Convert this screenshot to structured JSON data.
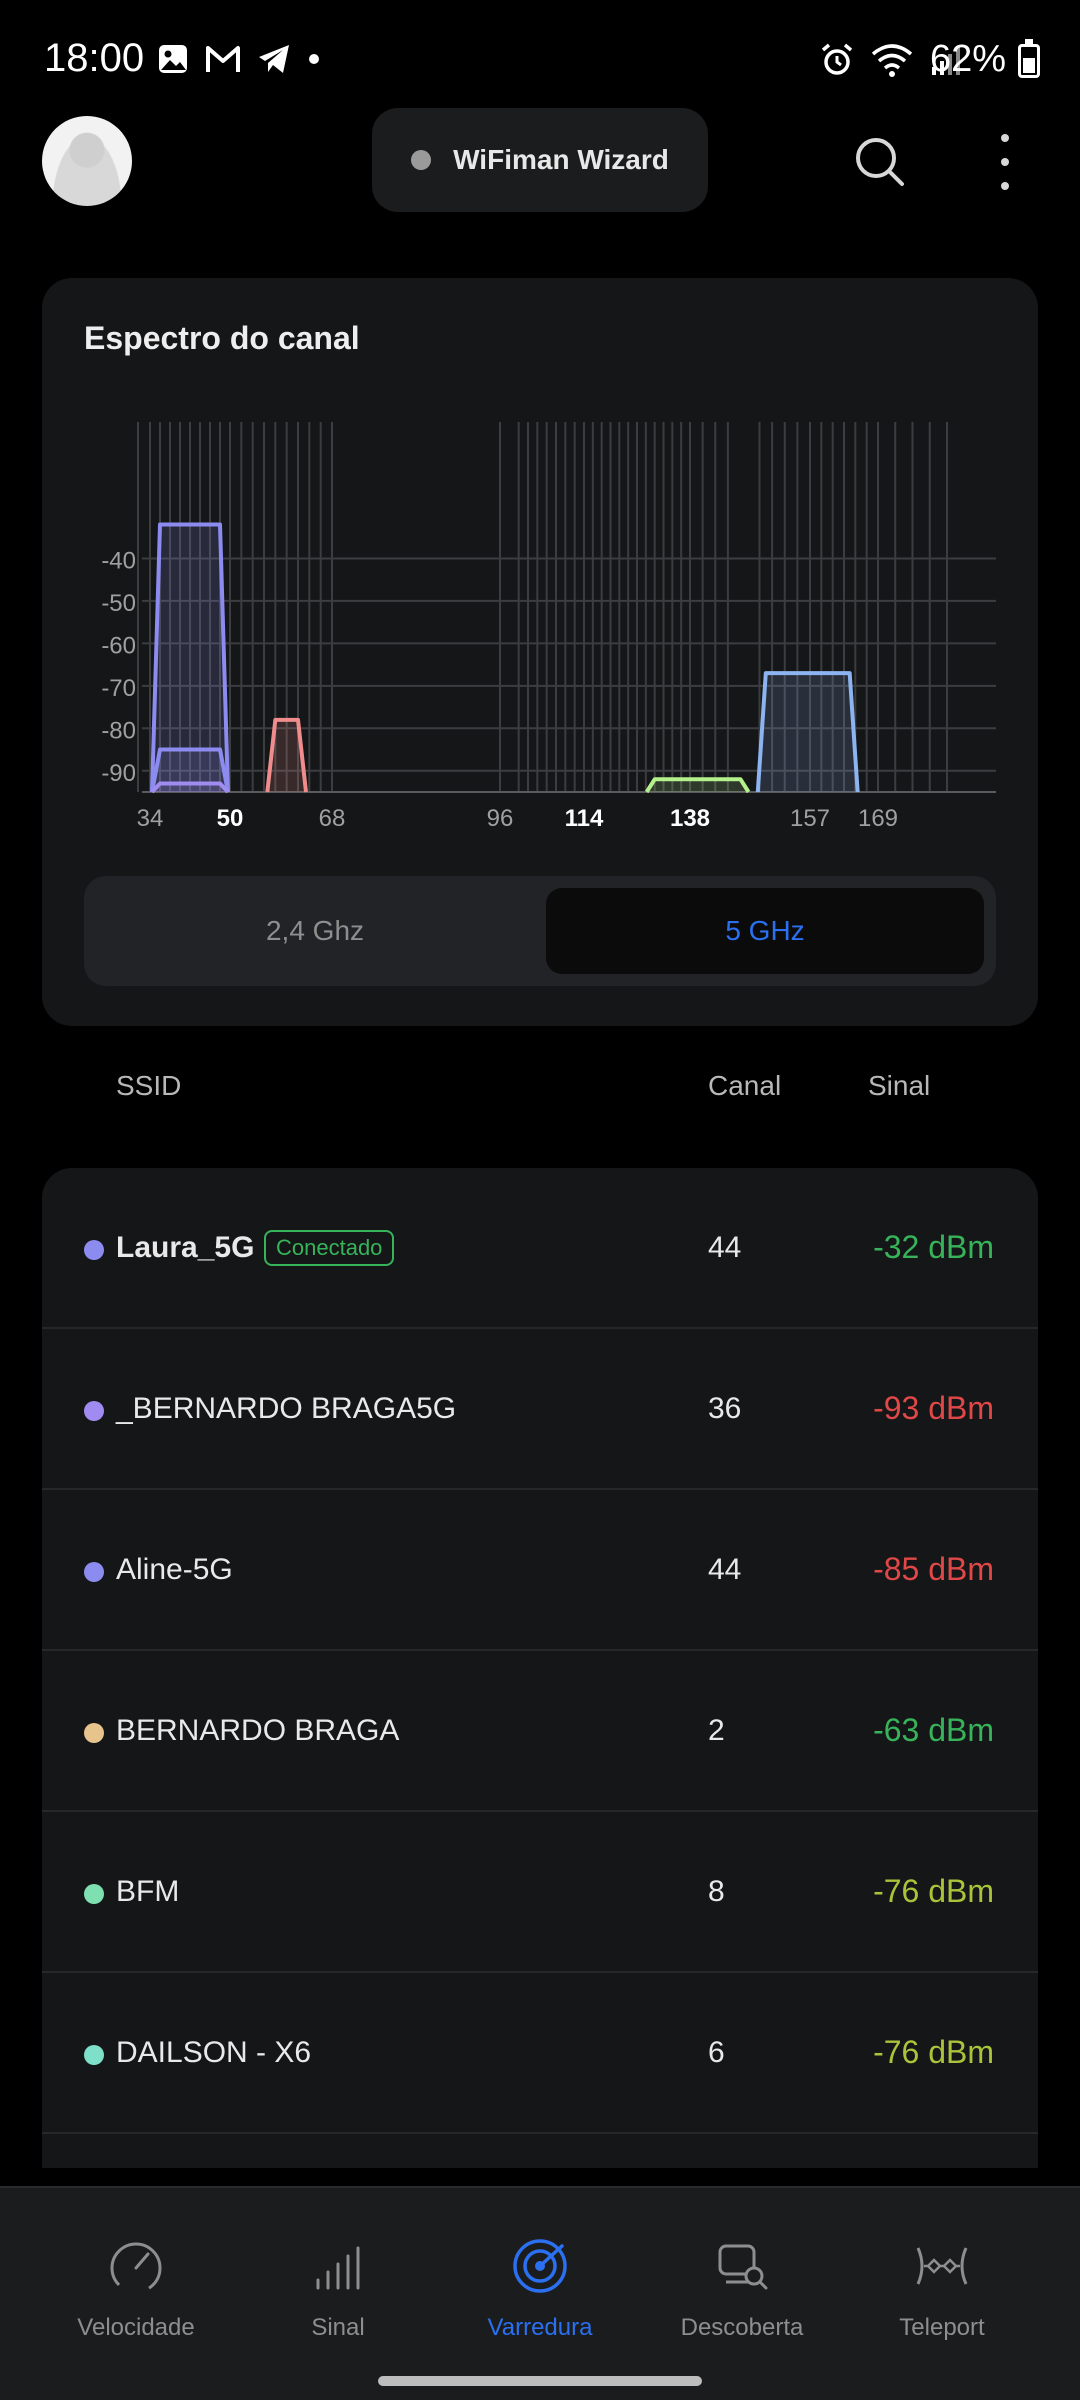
{
  "status_bar": {
    "time": "18:00",
    "battery": "62%",
    "left_icons": [
      "gallery-icon",
      "gmail-icon",
      "telegram-icon",
      "dot-icon"
    ],
    "right_icons": [
      "alarm-icon",
      "wifi-icon",
      "cell-signal-icon",
      "battery-icon"
    ]
  },
  "header": {
    "wizard_label": "WiFiman Wizard"
  },
  "spectrum": {
    "title": "Espectro do canal",
    "tabs": [
      {
        "label": "2,4 Ghz",
        "active": false
      },
      {
        "label": "5 GHz",
        "active": true
      }
    ]
  },
  "chart_data": {
    "type": "area",
    "y_ticks": [
      "-40",
      "-50",
      "-60",
      "-70",
      "-80",
      "-90"
    ],
    "ylim": [
      -95,
      -30
    ],
    "x_labels": [
      {
        "label": "34",
        "channel": 34,
        "bold": false
      },
      {
        "label": "50",
        "channel": 50,
        "bold": true
      },
      {
        "label": "68",
        "channel": 68,
        "bold": false
      },
      {
        "label": "96",
        "channel": 96,
        "bold": false
      },
      {
        "label": "114",
        "channel": 114,
        "bold": true
      },
      {
        "label": "138",
        "channel": 138,
        "bold": true
      },
      {
        "label": "157",
        "channel": 157,
        "bold": false
      },
      {
        "label": "169",
        "channel": 169,
        "bold": false
      }
    ],
    "grid_channels": [
      32,
      34,
      36,
      38,
      40,
      42,
      44,
      46,
      48,
      50,
      52,
      54,
      56,
      58,
      60,
      62,
      64,
      66,
      68,
      96,
      100,
      102,
      104,
      106,
      108,
      110,
      112,
      114,
      116,
      118,
      120,
      122,
      124,
      126,
      128,
      130,
      132,
      134,
      136,
      138,
      140,
      142,
      144,
      149,
      151,
      153,
      155,
      157,
      159,
      161,
      163,
      165,
      167,
      169,
      171,
      173,
      175,
      177
    ],
    "networks": [
      {
        "start": 36,
        "end": 48,
        "signal": -32,
        "color": "#8c8cf0"
      },
      {
        "start": 36,
        "end": 48,
        "signal": -85,
        "color": "#8c8cf0"
      },
      {
        "start": 36,
        "end": 48,
        "signal": -93,
        "color": "#a08cf0"
      },
      {
        "start": 58,
        "end": 62,
        "signal": -78,
        "color": "#f08c8c"
      },
      {
        "start": 130,
        "end": 146,
        "signal": -92,
        "color": "#b4f08c"
      },
      {
        "start": 150,
        "end": 164,
        "signal": -67,
        "color": "#8cb4f0"
      }
    ]
  },
  "table": {
    "headers": {
      "ssid": "SSID",
      "canal": "Canal",
      "sinal": "Sinal"
    },
    "rows": [
      {
        "ssid": "Laura_5G",
        "badge": "Conectado",
        "canal": "44",
        "sinal": "-32 dBm",
        "dot": "#8c8cf0",
        "sinal_color": "#37b35a",
        "bold": true
      },
      {
        "ssid": "_BERNARDO BRAGA5G",
        "canal": "36",
        "sinal": "-93 dBm",
        "dot": "#a08cf0",
        "sinal_color": "#e04848"
      },
      {
        "ssid": "Aline-5G",
        "canal": "44",
        "sinal": "-85 dBm",
        "dot": "#8c8cf0",
        "sinal_color": "#e04848"
      },
      {
        "ssid": "BERNARDO BRAGA",
        "canal": "2",
        "sinal": "-63 dBm",
        "dot": "#e6c48c",
        "sinal_color": "#37b35a"
      },
      {
        "ssid": "BFM",
        "canal": "8",
        "sinal": "-76 dBm",
        "dot": "#7ee0b0",
        "sinal_color": "#a8c43a"
      },
      {
        "ssid": "DAILSON - X6",
        "canal": "6",
        "sinal": "-76 dBm",
        "dot": "#7ee0c8",
        "sinal_color": "#a8c43a"
      }
    ]
  },
  "nav": {
    "items": [
      {
        "label": "Velocidade",
        "icon": "speedometer-icon",
        "active": false
      },
      {
        "label": "Sinal",
        "icon": "signal-bars-icon",
        "active": false
      },
      {
        "label": "Varredura",
        "icon": "radar-icon",
        "active": true
      },
      {
        "label": "Descoberta",
        "icon": "device-search-icon",
        "active": false
      },
      {
        "label": "Teleport",
        "icon": "teleport-icon",
        "active": false
      }
    ]
  }
}
